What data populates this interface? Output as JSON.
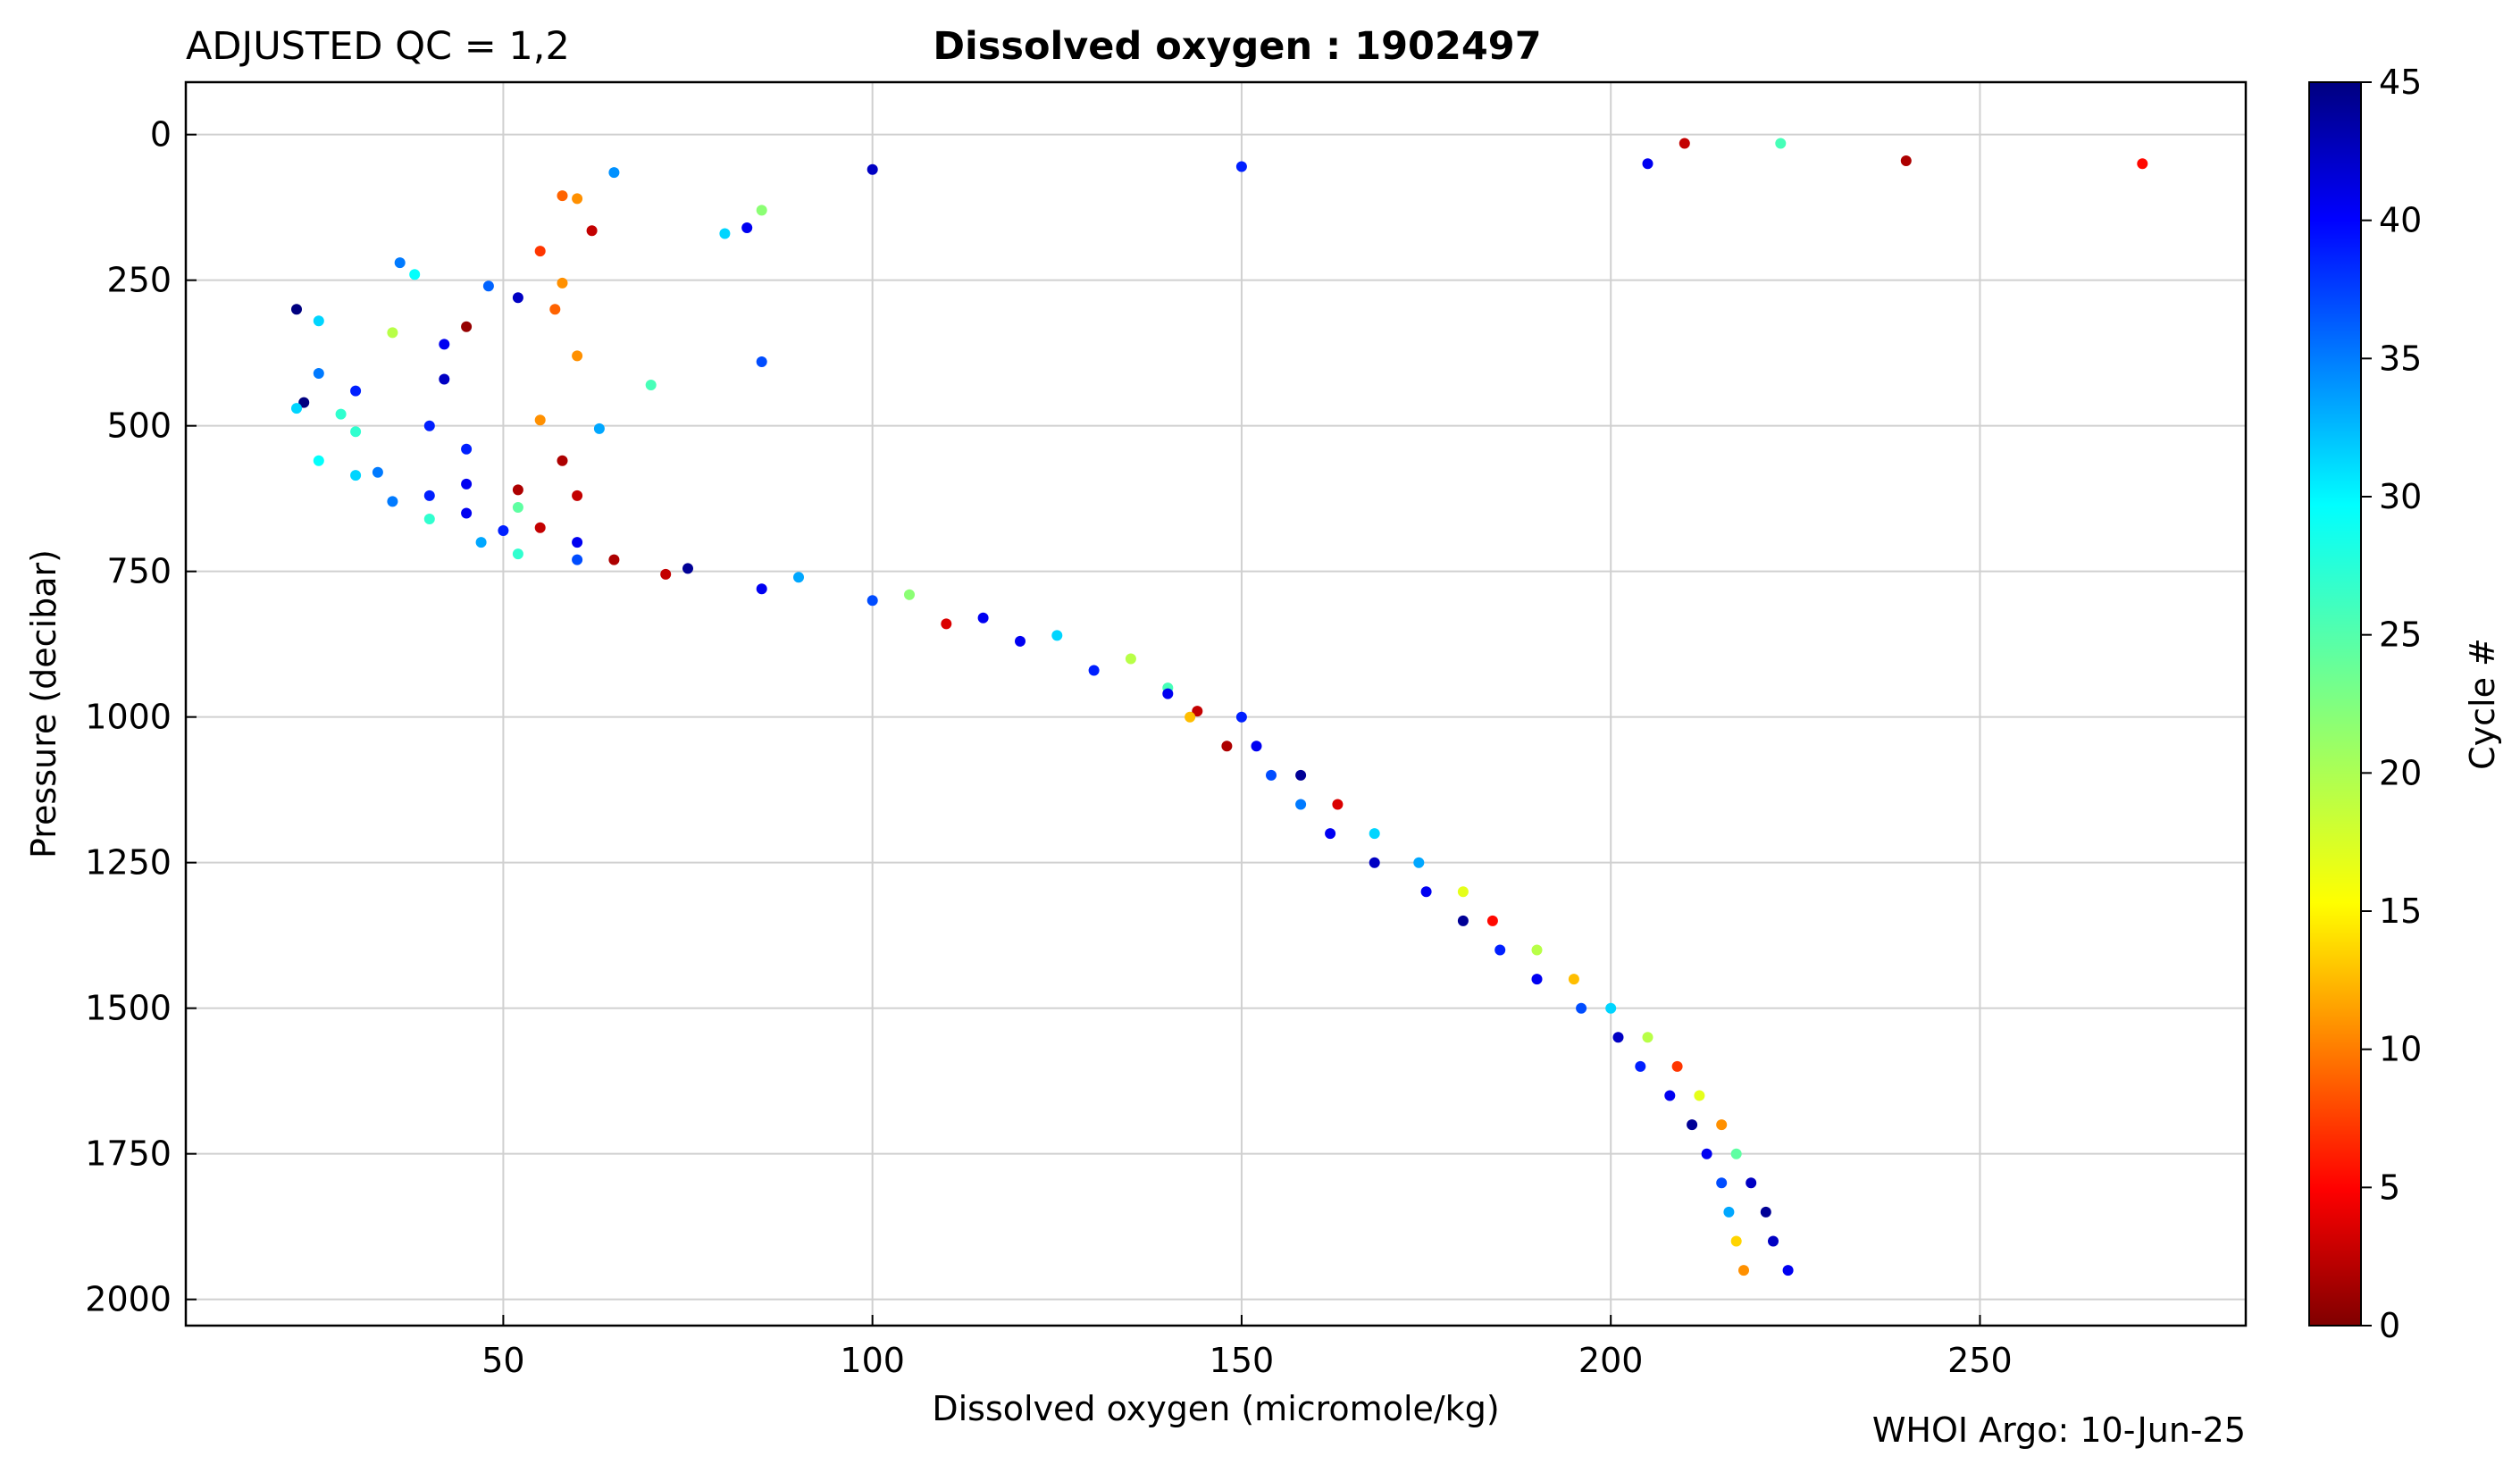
{
  "header": {
    "qc_label": "ADJUSTED QC = 1,2",
    "title": "Dissolved oxygen : 1902497"
  },
  "footer": {
    "credit": "WHOI Argo: 10-Jun-25"
  },
  "chart_data": {
    "type": "scatter",
    "title": "Dissolved oxygen : 1902497",
    "xlabel": "Dissolved oxygen  (micromole/kg)",
    "ylabel": "Pressure  (decibar)",
    "xlim": [
      7,
      286
    ],
    "ylim": [
      2045,
      -90
    ],
    "y_inverted": true,
    "grid": true,
    "x_ticks": [
      50,
      100,
      150,
      200,
      250
    ],
    "y_ticks": [
      0,
      250,
      500,
      750,
      1000,
      1250,
      1500,
      1750,
      2000
    ],
    "colorbar": {
      "label": "Cycle #",
      "range": [
        0,
        45
      ],
      "ticks": [
        0,
        5,
        10,
        15,
        20,
        25,
        30,
        35,
        40,
        45
      ],
      "colormap": "jet",
      "placement": "right"
    },
    "points": {
      "x": [
        210,
        223,
        205,
        240,
        272,
        150,
        100,
        65,
        58,
        60,
        85,
        83,
        62,
        80,
        55,
        36,
        38,
        48,
        58,
        52,
        22,
        25,
        35,
        42,
        60,
        85,
        45,
        57,
        25,
        30,
        42,
        70,
        23,
        28,
        40,
        55,
        63,
        22,
        30,
        45,
        58,
        25,
        33,
        45,
        60,
        30,
        40,
        52,
        35,
        45,
        52,
        40,
        50,
        55,
        47,
        60,
        52,
        65,
        60,
        75,
        72,
        90,
        85,
        105,
        100,
        115,
        110,
        125,
        120,
        135,
        130,
        140,
        140,
        144,
        143,
        150,
        148,
        152,
        154,
        158,
        158,
        163,
        162,
        168,
        168,
        174,
        175,
        180,
        180,
        184,
        185,
        190,
        190,
        195,
        196,
        200,
        201,
        205,
        204,
        209,
        208,
        212,
        211,
        215,
        213,
        217,
        215,
        219,
        216,
        221,
        217,
        222,
        218,
        224
      ],
      "y": [
        15,
        15,
        50,
        45,
        50,
        55,
        60,
        65,
        105,
        110,
        130,
        160,
        165,
        170,
        200,
        220,
        240,
        260,
        255,
        280,
        300,
        320,
        340,
        360,
        380,
        390,
        330,
        300,
        410,
        440,
        420,
        430,
        460,
        480,
        500,
        490,
        505,
        470,
        510,
        540,
        560,
        560,
        580,
        600,
        620,
        585,
        620,
        640,
        630,
        650,
        610,
        660,
        680,
        675,
        700,
        700,
        720,
        730,
        730,
        745,
        755,
        760,
        780,
        790,
        800,
        830,
        840,
        860,
        870,
        900,
        920,
        950,
        960,
        990,
        1000,
        1000,
        1050,
        1050,
        1100,
        1100,
        1150,
        1150,
        1200,
        1200,
        1250,
        1250,
        1300,
        1300,
        1350,
        1350,
        1400,
        1400,
        1450,
        1450,
        1500,
        1500,
        1550,
        1550,
        1600,
        1600,
        1650,
        1650,
        1700,
        1700,
        1750,
        1750,
        1800,
        1800,
        1850,
        1850,
        1900,
        1900,
        1950,
        1950
      ],
      "cycle": [
        3,
        25,
        40,
        2,
        6,
        38,
        42,
        33,
        10,
        12,
        22,
        40,
        3,
        30,
        8,
        34,
        28,
        35,
        12,
        42,
        45,
        30,
        20,
        40,
        12,
        36,
        1,
        10,
        34,
        38,
        42,
        25,
        45,
        26,
        38,
        12,
        32,
        30,
        26,
        38,
        2,
        28,
        34,
        40,
        3,
        30,
        38,
        24,
        34,
        40,
        2,
        26,
        38,
        3,
        32,
        40,
        26,
        2,
        36,
        44,
        3,
        32,
        40,
        22,
        36,
        40,
        4,
        30,
        40,
        20,
        38,
        25,
        40,
        3,
        14,
        38,
        2,
        40,
        36,
        44,
        34,
        4,
        40,
        30,
        42,
        32,
        40,
        18,
        44,
        6,
        38,
        20,
        40,
        14,
        36,
        30,
        42,
        20,
        38,
        8,
        40,
        18,
        44,
        12,
        40,
        24,
        36,
        42,
        32,
        44,
        15,
        42,
        12,
        40
      ]
    }
  }
}
